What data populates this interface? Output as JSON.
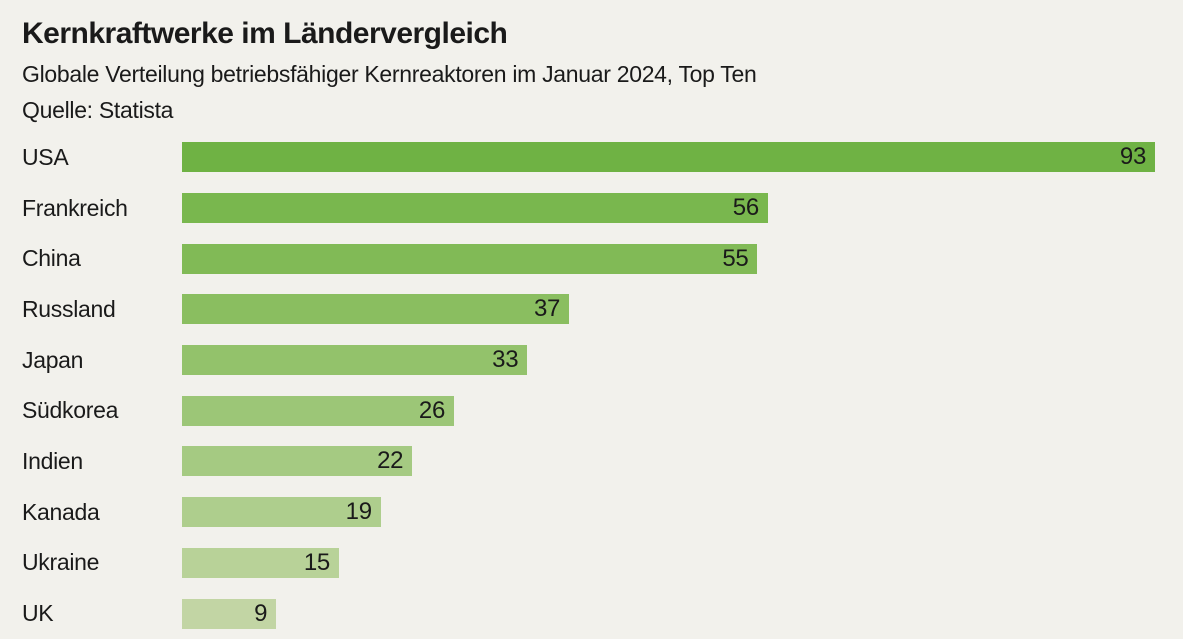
{
  "header": {
    "title": "Kernkraftwerke im Ländervergleich",
    "subtitle": "Globale Verteilung betriebsfähiger Kernreaktoren im Januar 2024, Top Ten",
    "source": "Quelle: Statista"
  },
  "colors": {
    "background": "#f2f1ec",
    "text": "#1a1a1a",
    "bar_color_max": "#6fb244",
    "bar_color_min": "#c2d5a4"
  },
  "chart_data": {
    "type": "bar",
    "orientation": "horizontal",
    "title": "Kernkraftwerke im Ländervergleich",
    "subtitle": "Globale Verteilung betriebsfähiger Kernreaktoren im Januar 2024, Top Ten",
    "source": "Quelle: Statista",
    "categories": [
      "USA",
      "Frankreich",
      "China",
      "Russland",
      "Japan",
      "Südkorea",
      "Indien",
      "Kanada",
      "Ukraine",
      "UK"
    ],
    "values": [
      93,
      56,
      55,
      37,
      33,
      26,
      22,
      19,
      15,
      9
    ],
    "bar_colors": [
      "#6fb244",
      "#79b74e",
      "#81ba56",
      "#8abe60",
      "#93c26b",
      "#9cc677",
      "#a5ca82",
      "#aece8d",
      "#b8d298",
      "#c2d5a4"
    ],
    "xlim": [
      0,
      93
    ],
    "value_labels": "inside-right",
    "grid": false,
    "legend": false
  }
}
